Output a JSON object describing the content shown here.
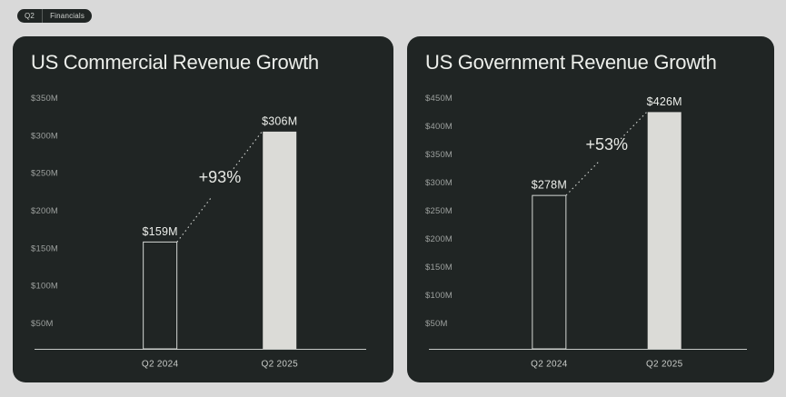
{
  "badge": {
    "quarter": "Q2",
    "label": "Financials"
  },
  "colors": {
    "page_bg": "#d9d9d9",
    "card_bg": "#202524",
    "title_text": "#edefeb",
    "tick_label": "#9ca09e",
    "axis_line": "#c6c9c6",
    "bar_fill": "#dbdbd7",
    "bar_outline": "#d4d7d4",
    "value_label": "#edefeb",
    "x_label": "#c9ccc9",
    "growth_label": "#e6e8e4",
    "dotted_line": "#cbcecb"
  },
  "chart_data": [
    {
      "type": "bar",
      "title": "US Commercial Revenue Growth",
      "categories": [
        "Q2 2024",
        "Q2 2025"
      ],
      "values": [
        159,
        306
      ],
      "value_labels": [
        "$159M",
        "$306M"
      ],
      "growth_annotation": "+93%",
      "bar_styles": [
        "outline",
        "fill"
      ],
      "xlabel": "",
      "ylabel": "",
      "ylim": [
        0,
        375
      ],
      "yticks": [
        50,
        100,
        150,
        200,
        250,
        300,
        350
      ],
      "ytick_labels": [
        "$50M",
        "$100M",
        "$150M",
        "$200M",
        "$250M",
        "$300M",
        "$350M"
      ],
      "grid": false,
      "legend": "none"
    },
    {
      "type": "bar",
      "title": "US Government Revenue Growth",
      "categories": [
        "Q2 2024",
        "Q2 2025"
      ],
      "values": [
        278,
        426
      ],
      "value_labels": [
        "$278M",
        "$426M"
      ],
      "growth_annotation": "+53%",
      "bar_styles": [
        "outline",
        "fill"
      ],
      "xlabel": "",
      "ylabel": "",
      "ylim": [
        0,
        480
      ],
      "yticks": [
        50,
        100,
        150,
        200,
        250,
        300,
        350,
        400,
        450
      ],
      "ytick_labels": [
        "$50M",
        "$100M",
        "$150M",
        "$200M",
        "$250M",
        "$300M",
        "$350M",
        "$400M",
        "$450M"
      ],
      "grid": false,
      "legend": "none"
    }
  ]
}
